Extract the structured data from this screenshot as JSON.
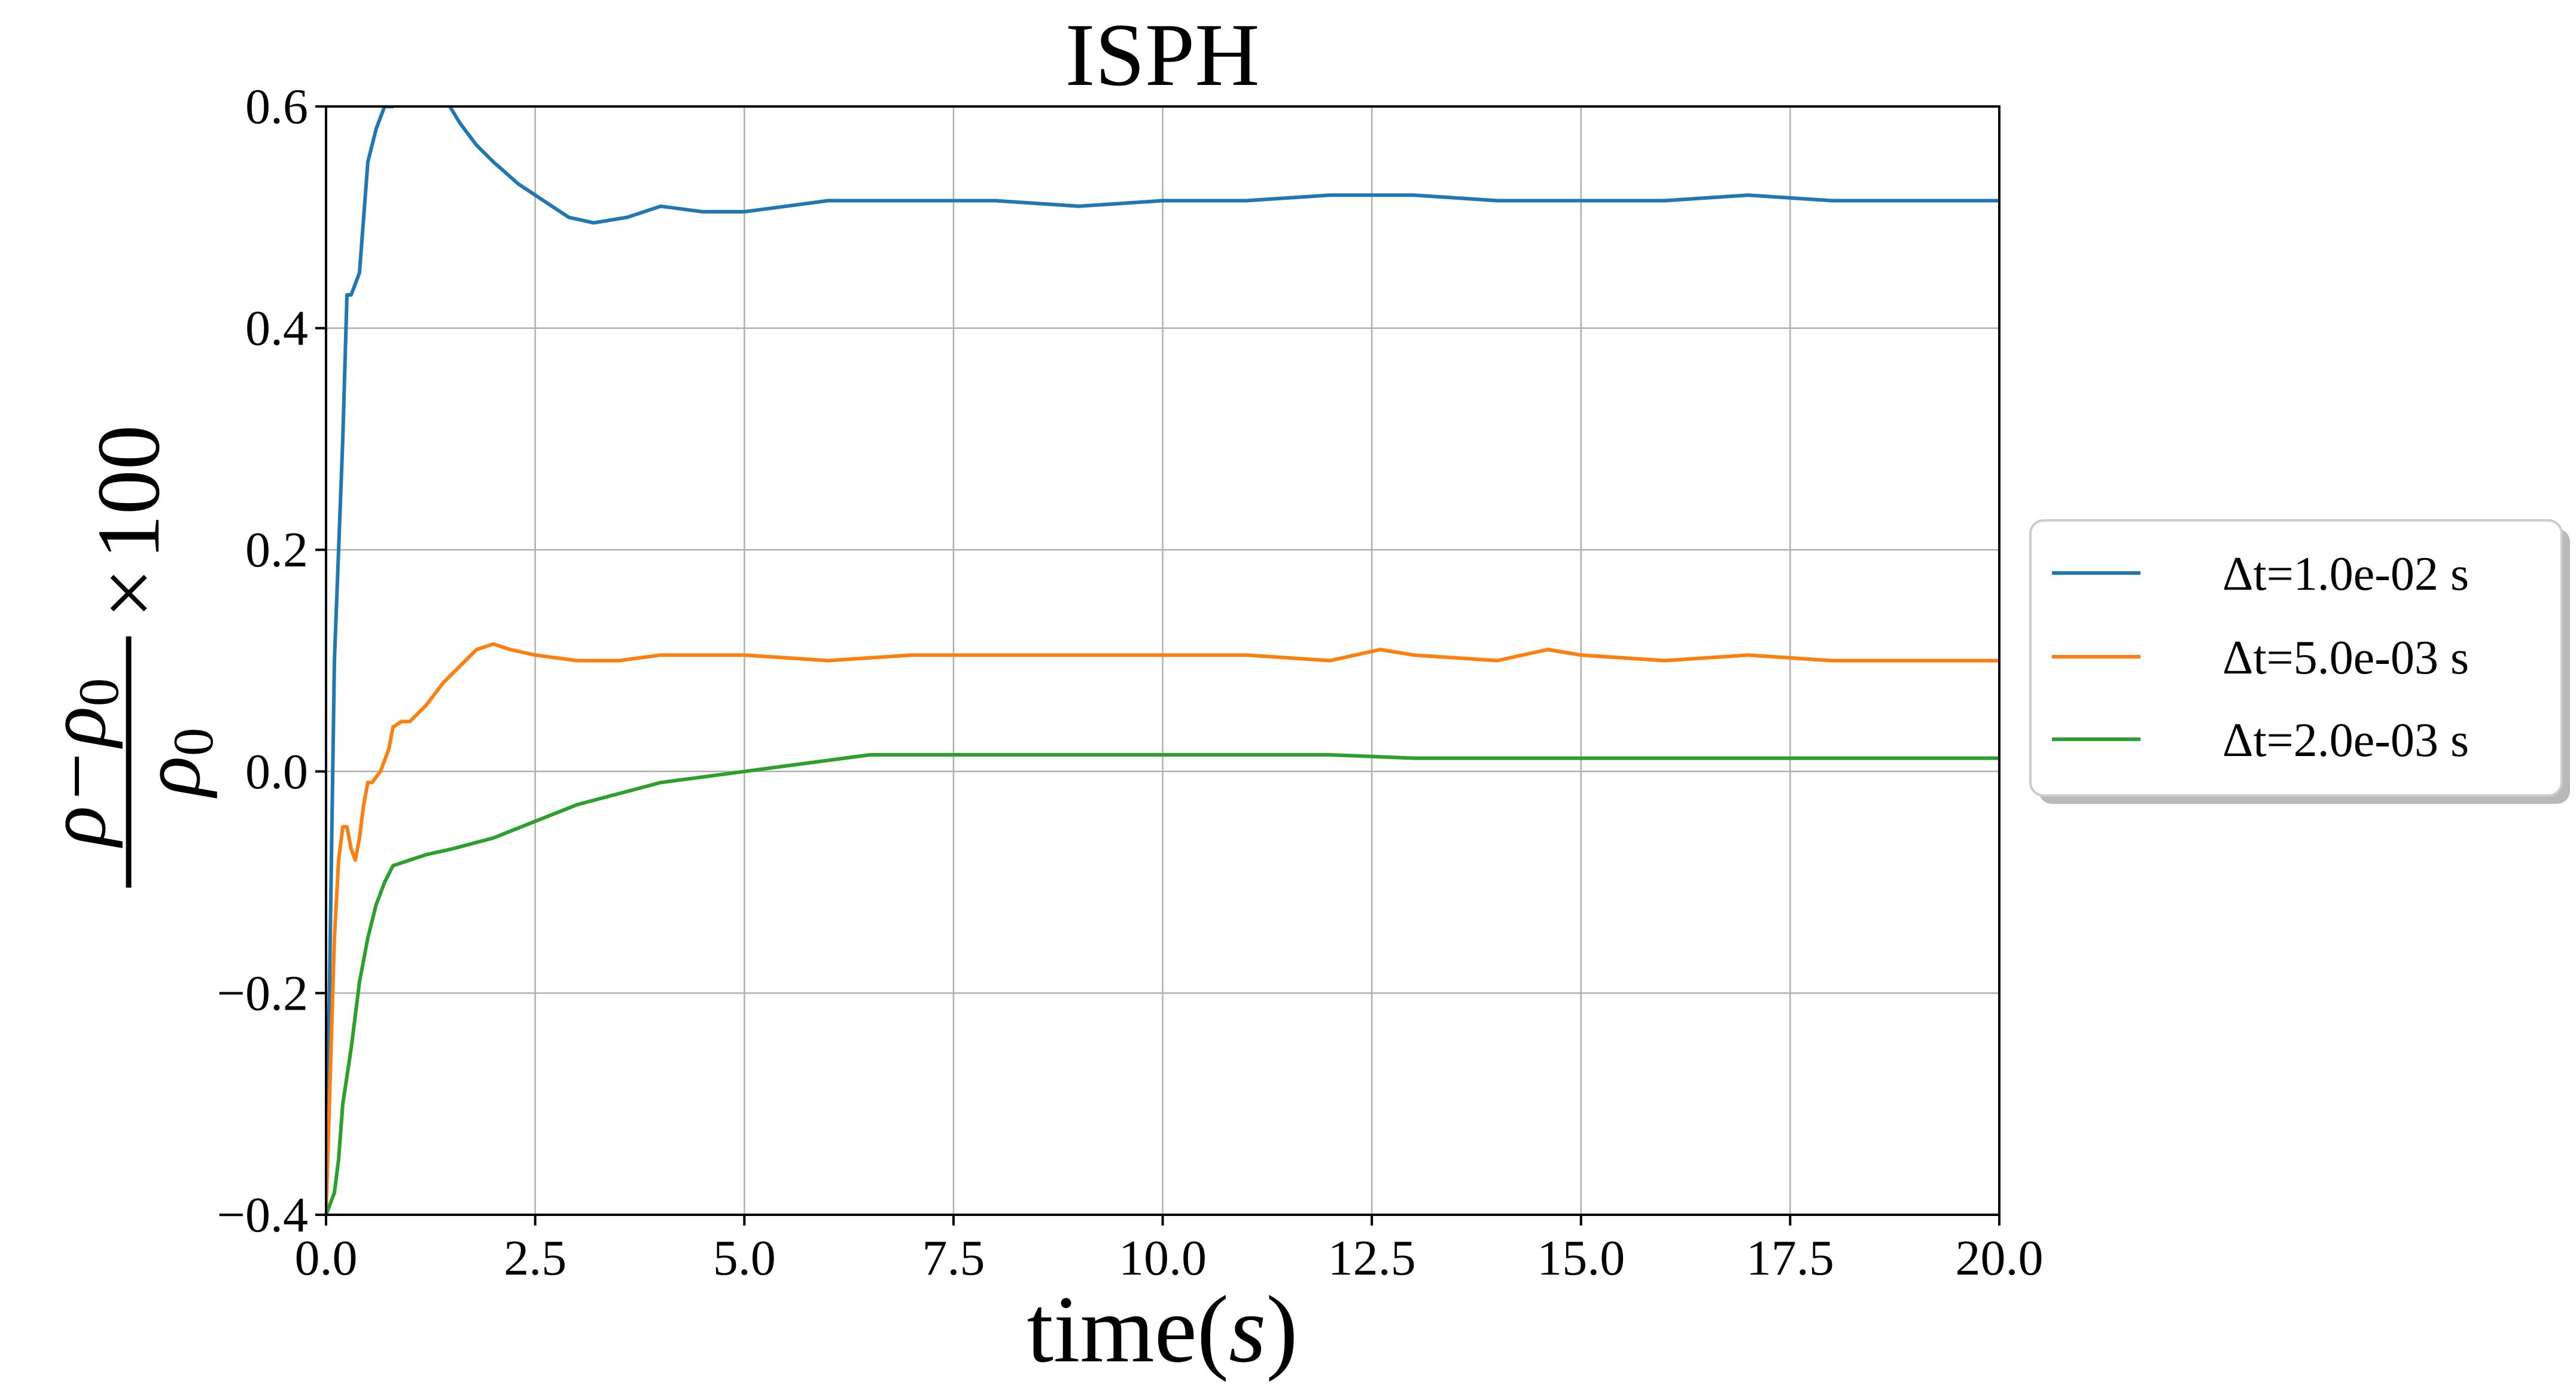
{
  "chart_data": {
    "type": "line",
    "title": "ISPH",
    "xlabel_text": "time(",
    "xlabel_var": "s",
    "xlabel_close": ")",
    "ylabel": {
      "numerator_rho": "ρ",
      "numerator_minus": "−",
      "numerator_rho0": "ρ",
      "numerator_rho0_sub": "0",
      "denominator_rho0": "ρ",
      "denominator_rho0_sub": "0",
      "times": "×",
      "factor": "100"
    },
    "xlim": [
      0,
      20
    ],
    "ylim": [
      -0.4,
      0.6
    ],
    "xticks": [
      0.0,
      2.5,
      5.0,
      7.5,
      10.0,
      12.5,
      15.0,
      17.5,
      20.0
    ],
    "xtick_labels": [
      "0.0",
      "2.5",
      "5.0",
      "7.5",
      "10.0",
      "12.5",
      "15.0",
      "17.5",
      "20.0"
    ],
    "yticks": [
      -0.4,
      -0.2,
      0.0,
      0.2,
      0.4,
      0.6
    ],
    "ytick_labels": [
      "−0.4",
      "−0.2",
      "0.0",
      "0.2",
      "0.4",
      "0.6"
    ],
    "grid": true,
    "legend_position": "right, outside plot area",
    "series": [
      {
        "name": "Δt=1.0e-02 s",
        "color": "#1f77b4",
        "x": [
          0.0,
          0.1,
          0.2,
          0.25,
          0.3,
          0.4,
          0.5,
          0.6,
          0.7,
          0.8,
          1.0,
          1.2,
          1.4,
          1.6,
          1.8,
          2.0,
          2.3,
          2.6,
          2.9,
          3.2,
          3.6,
          4.0,
          4.5,
          5.0,
          6.0,
          7.0,
          8.0,
          9.0,
          10.0,
          11.0,
          12.0,
          13.0,
          14.0,
          15.0,
          16.0,
          17.0,
          18.0,
          19.0,
          20.0
        ],
        "y": [
          -0.4,
          0.1,
          0.3,
          0.43,
          0.43,
          0.45,
          0.55,
          0.58,
          0.6,
          0.6,
          0.62,
          0.63,
          0.61,
          0.585,
          0.565,
          0.55,
          0.53,
          0.515,
          0.5,
          0.495,
          0.5,
          0.51,
          0.505,
          0.505,
          0.515,
          0.515,
          0.515,
          0.51,
          0.515,
          0.515,
          0.52,
          0.52,
          0.515,
          0.515,
          0.515,
          0.52,
          0.515,
          0.515,
          0.515
        ]
      },
      {
        "name": "Δt=5.0e-03 s",
        "color": "#ff7f0e",
        "x": [
          0.0,
          0.1,
          0.15,
          0.2,
          0.25,
          0.3,
          0.35,
          0.4,
          0.45,
          0.5,
          0.55,
          0.6,
          0.65,
          0.7,
          0.75,
          0.8,
          0.9,
          1.0,
          1.2,
          1.4,
          1.6,
          1.8,
          2.0,
          2.2,
          2.5,
          3.0,
          3.5,
          4.0,
          4.5,
          5.0,
          6.0,
          7.0,
          8.0,
          9.0,
          10.0,
          11.0,
          12.0,
          12.6,
          13.0,
          14.0,
          14.6,
          15.0,
          16.0,
          17.0,
          18.0,
          19.0,
          20.0
        ],
        "y": [
          -0.4,
          -0.15,
          -0.08,
          -0.05,
          -0.05,
          -0.07,
          -0.08,
          -0.06,
          -0.03,
          -0.01,
          -0.01,
          -0.005,
          0.0,
          0.01,
          0.02,
          0.04,
          0.045,
          0.045,
          0.06,
          0.08,
          0.095,
          0.11,
          0.115,
          0.11,
          0.105,
          0.1,
          0.1,
          0.105,
          0.105,
          0.105,
          0.1,
          0.105,
          0.105,
          0.105,
          0.105,
          0.105,
          0.1,
          0.11,
          0.105,
          0.1,
          0.11,
          0.105,
          0.1,
          0.105,
          0.1,
          0.1,
          0.1
        ]
      },
      {
        "name": "Δt=2.0e-03 s",
        "color": "#2ca02c",
        "x": [
          0.0,
          0.1,
          0.15,
          0.2,
          0.3,
          0.4,
          0.5,
          0.6,
          0.7,
          0.8,
          1.0,
          1.2,
          1.5,
          2.0,
          2.5,
          3.0,
          3.5,
          4.0,
          4.5,
          5.0,
          5.5,
          6.0,
          6.5,
          7.0,
          7.5,
          8.0,
          8.5,
          9.0,
          10.0,
          11.0,
          12.0,
          13.0,
          14.0,
          15.0,
          16.0,
          17.0,
          18.0,
          19.0,
          20.0
        ],
        "y": [
          -0.4,
          -0.38,
          -0.35,
          -0.3,
          -0.25,
          -0.19,
          -0.15,
          -0.12,
          -0.1,
          -0.085,
          -0.08,
          -0.075,
          -0.07,
          -0.06,
          -0.045,
          -0.03,
          -0.02,
          -0.01,
          -0.005,
          0.0,
          0.005,
          0.01,
          0.015,
          0.015,
          0.015,
          0.015,
          0.015,
          0.015,
          0.015,
          0.015,
          0.015,
          0.012,
          0.012,
          0.012,
          0.012,
          0.012,
          0.012,
          0.012,
          0.012
        ]
      }
    ]
  }
}
